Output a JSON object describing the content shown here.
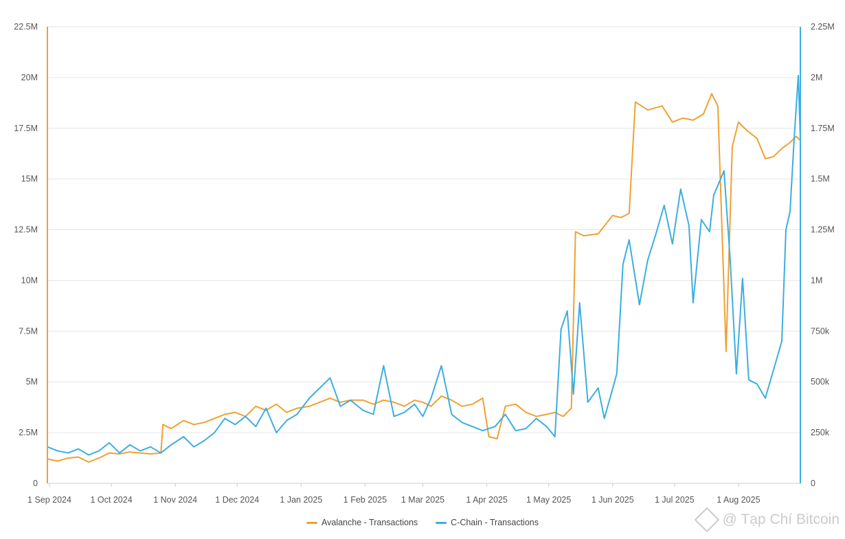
{
  "chart_data": {
    "type": "line",
    "title": "",
    "x_ticks": [
      "1 Sep 2024",
      "1 Oct 2024",
      "1 Nov 2024",
      "1 Dec 2024",
      "1 Jan 2025",
      "1 Feb 2025",
      "1 Mar 2025",
      "1 Apr 2025",
      "1 May 2025",
      "1 Jun 2025",
      "1 Jul 2025",
      "1 Aug 2025"
    ],
    "x_range": [
      "2024-08-31",
      "2025-08-31"
    ],
    "y_left": {
      "min": 0,
      "max": 22500000,
      "ticks": [
        "0",
        "2.5M",
        "5M",
        "7.5M",
        "10M",
        "12.5M",
        "15M",
        "17.5M",
        "20M",
        "22.5M"
      ]
    },
    "y_right": {
      "min": 0,
      "max": 2250000,
      "ticks": [
        "0",
        "250k",
        "500k",
        "750k",
        "1M",
        "1.25M",
        "1.5M",
        "1.75M",
        "2M",
        "2.25M"
      ]
    },
    "grid": "horizontal",
    "legend_position": "bottom-center",
    "series": [
      {
        "name": "Avalanche - Transactions",
        "axis": "left",
        "color": "#F0A030",
        "points": [
          [
            "2024-08-31",
            1200000
          ],
          [
            "2024-09-05",
            1100000
          ],
          [
            "2024-09-10",
            1250000
          ],
          [
            "2024-09-15",
            1300000
          ],
          [
            "2024-09-20",
            1050000
          ],
          [
            "2024-09-25",
            1250000
          ],
          [
            "2024-09-30",
            1500000
          ],
          [
            "2024-10-05",
            1450000
          ],
          [
            "2024-10-10",
            1550000
          ],
          [
            "2024-10-15",
            1500000
          ],
          [
            "2024-10-20",
            1450000
          ],
          [
            "2024-10-25",
            1500000
          ],
          [
            "2024-10-26",
            2900000
          ],
          [
            "2024-10-30",
            2700000
          ],
          [
            "2024-11-05",
            3100000
          ],
          [
            "2024-11-10",
            2900000
          ],
          [
            "2024-11-15",
            3000000
          ],
          [
            "2024-11-20",
            3200000
          ],
          [
            "2024-11-25",
            3400000
          ],
          [
            "2024-11-30",
            3500000
          ],
          [
            "2024-12-05",
            3300000
          ],
          [
            "2024-12-10",
            3800000
          ],
          [
            "2024-12-15",
            3600000
          ],
          [
            "2024-12-20",
            3900000
          ],
          [
            "2024-12-25",
            3500000
          ],
          [
            "2024-12-30",
            3700000
          ],
          [
            "2025-01-05",
            3800000
          ],
          [
            "2025-01-10",
            4000000
          ],
          [
            "2025-01-15",
            4200000
          ],
          [
            "2025-01-20",
            4000000
          ],
          [
            "2025-01-25",
            4100000
          ],
          [
            "2025-01-31",
            4100000
          ],
          [
            "2025-02-05",
            3900000
          ],
          [
            "2025-02-10",
            4100000
          ],
          [
            "2025-02-15",
            4000000
          ],
          [
            "2025-02-20",
            3800000
          ],
          [
            "2025-02-25",
            4100000
          ],
          [
            "2025-03-01",
            4000000
          ],
          [
            "2025-03-05",
            3800000
          ],
          [
            "2025-03-10",
            4300000
          ],
          [
            "2025-03-15",
            4100000
          ],
          [
            "2025-03-20",
            3800000
          ],
          [
            "2025-03-25",
            3900000
          ],
          [
            "2025-03-30",
            4200000
          ],
          [
            "2025-04-02",
            2300000
          ],
          [
            "2025-04-06",
            2200000
          ],
          [
            "2025-04-10",
            3800000
          ],
          [
            "2025-04-15",
            3900000
          ],
          [
            "2025-04-20",
            3500000
          ],
          [
            "2025-04-25",
            3300000
          ],
          [
            "2025-04-30",
            3400000
          ],
          [
            "2025-05-04",
            3500000
          ],
          [
            "2025-05-08",
            3300000
          ],
          [
            "2025-05-12",
            3700000
          ],
          [
            "2025-05-14",
            12400000
          ],
          [
            "2025-05-18",
            12200000
          ],
          [
            "2025-05-25",
            12300000
          ],
          [
            "2025-06-01",
            13200000
          ],
          [
            "2025-06-05",
            13100000
          ],
          [
            "2025-06-09",
            13300000
          ],
          [
            "2025-06-12",
            18800000
          ],
          [
            "2025-06-18",
            18400000
          ],
          [
            "2025-06-25",
            18600000
          ],
          [
            "2025-06-30",
            17800000
          ],
          [
            "2025-07-05",
            18000000
          ],
          [
            "2025-07-10",
            17900000
          ],
          [
            "2025-07-15",
            18200000
          ],
          [
            "2025-07-19",
            19200000
          ],
          [
            "2025-07-22",
            18600000
          ],
          [
            "2025-07-26",
            6500000
          ],
          [
            "2025-07-29",
            16600000
          ],
          [
            "2025-08-01",
            17800000
          ],
          [
            "2025-08-05",
            17400000
          ],
          [
            "2025-08-10",
            17000000
          ],
          [
            "2025-08-14",
            16000000
          ],
          [
            "2025-08-18",
            16100000
          ],
          [
            "2025-08-22",
            16500000
          ],
          [
            "2025-08-26",
            16800000
          ],
          [
            "2025-08-29",
            17100000
          ],
          [
            "2025-08-31",
            16900000
          ]
        ]
      },
      {
        "name": "C-Chain - Transactions",
        "axis": "right",
        "color": "#3AAEE0",
        "points": [
          [
            "2024-08-31",
            180000
          ],
          [
            "2024-09-05",
            160000
          ],
          [
            "2024-09-10",
            150000
          ],
          [
            "2024-09-15",
            170000
          ],
          [
            "2024-09-20",
            140000
          ],
          [
            "2024-09-25",
            160000
          ],
          [
            "2024-09-30",
            200000
          ],
          [
            "2024-10-05",
            150000
          ],
          [
            "2024-10-10",
            190000
          ],
          [
            "2024-10-15",
            160000
          ],
          [
            "2024-10-20",
            180000
          ],
          [
            "2024-10-25",
            150000
          ],
          [
            "2024-10-30",
            190000
          ],
          [
            "2024-11-05",
            230000
          ],
          [
            "2024-11-10",
            180000
          ],
          [
            "2024-11-15",
            210000
          ],
          [
            "2024-11-20",
            250000
          ],
          [
            "2024-11-25",
            320000
          ],
          [
            "2024-11-30",
            290000
          ],
          [
            "2024-12-05",
            330000
          ],
          [
            "2024-12-10",
            280000
          ],
          [
            "2024-12-15",
            370000
          ],
          [
            "2024-12-20",
            250000
          ],
          [
            "2024-12-25",
            310000
          ],
          [
            "2024-12-30",
            340000
          ],
          [
            "2025-01-05",
            420000
          ],
          [
            "2025-01-10",
            470000
          ],
          [
            "2025-01-15",
            520000
          ],
          [
            "2025-01-20",
            380000
          ],
          [
            "2025-01-25",
            410000
          ],
          [
            "2025-01-31",
            360000
          ],
          [
            "2025-02-05",
            340000
          ],
          [
            "2025-02-10",
            580000
          ],
          [
            "2025-02-15",
            330000
          ],
          [
            "2025-02-20",
            350000
          ],
          [
            "2025-02-25",
            390000
          ],
          [
            "2025-03-01",
            330000
          ],
          [
            "2025-03-05",
            420000
          ],
          [
            "2025-03-10",
            580000
          ],
          [
            "2025-03-15",
            340000
          ],
          [
            "2025-03-20",
            300000
          ],
          [
            "2025-03-25",
            280000
          ],
          [
            "2025-03-30",
            260000
          ],
          [
            "2025-04-05",
            280000
          ],
          [
            "2025-04-10",
            340000
          ],
          [
            "2025-04-15",
            260000
          ],
          [
            "2025-04-20",
            270000
          ],
          [
            "2025-04-25",
            320000
          ],
          [
            "2025-04-30",
            280000
          ],
          [
            "2025-05-04",
            230000
          ],
          [
            "2025-05-07",
            760000
          ],
          [
            "2025-05-10",
            850000
          ],
          [
            "2025-05-13",
            440000
          ],
          [
            "2025-05-16",
            890000
          ],
          [
            "2025-05-20",
            400000
          ],
          [
            "2025-05-25",
            470000
          ],
          [
            "2025-05-28",
            320000
          ],
          [
            "2025-06-03",
            540000
          ],
          [
            "2025-06-06",
            1080000
          ],
          [
            "2025-06-09",
            1200000
          ],
          [
            "2025-06-14",
            880000
          ],
          [
            "2025-06-18",
            1100000
          ],
          [
            "2025-06-22",
            1230000
          ],
          [
            "2025-06-26",
            1370000
          ],
          [
            "2025-06-30",
            1180000
          ],
          [
            "2025-07-04",
            1450000
          ],
          [
            "2025-07-08",
            1270000
          ],
          [
            "2025-07-10",
            890000
          ],
          [
            "2025-07-14",
            1300000
          ],
          [
            "2025-07-18",
            1240000
          ],
          [
            "2025-07-20",
            1420000
          ],
          [
            "2025-07-25",
            1540000
          ],
          [
            "2025-07-28",
            1100000
          ],
          [
            "2025-07-31",
            540000
          ],
          [
            "2025-08-03",
            1010000
          ],
          [
            "2025-08-06",
            510000
          ],
          [
            "2025-08-10",
            490000
          ],
          [
            "2025-08-14",
            420000
          ],
          [
            "2025-08-18",
            560000
          ],
          [
            "2025-08-22",
            700000
          ],
          [
            "2025-08-24",
            1250000
          ],
          [
            "2025-08-26",
            1340000
          ],
          [
            "2025-08-28",
            1700000
          ],
          [
            "2025-08-30",
            2010000
          ],
          [
            "2025-08-31",
            1700000
          ]
        ]
      }
    ]
  },
  "legend": [
    {
      "label": "Avalanche - Transactions",
      "color": "#F0A030"
    },
    {
      "label": "C-Chain - Transactions",
      "color": "#3AAEE0"
    }
  ],
  "watermark": {
    "text": "@ Tạp Chí Bitcoin"
  }
}
